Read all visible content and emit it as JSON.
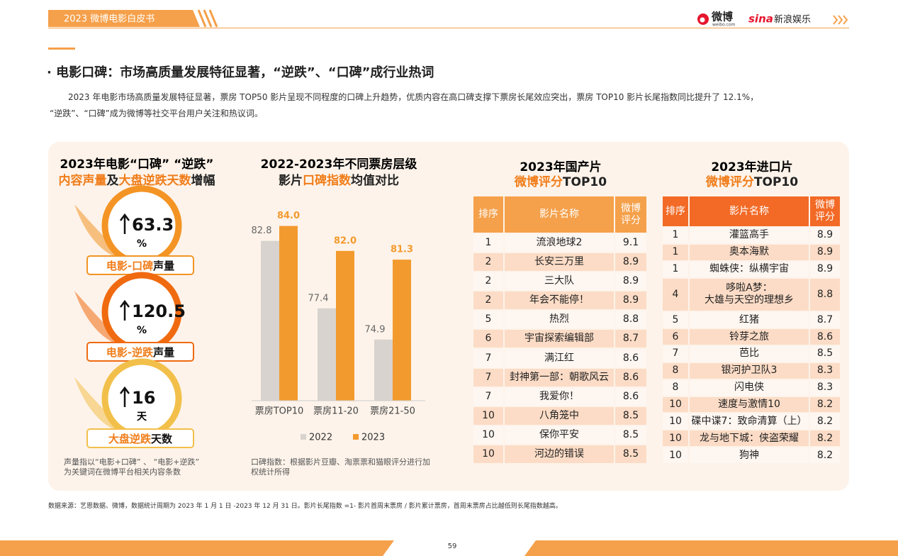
{
  "header": {
    "title": "2023 微博电影白皮书",
    "logo_weibo": "微博",
    "logo_weibo_url": "weibo.com",
    "logo_sina": "sina",
    "logo_sina_ent": "新浪娱乐"
  },
  "section": {
    "heading": "·  电影口碑：市场高质量发展特征显著，“逆跌”、“口碑”成行业热词",
    "paragraph_lines": [
      "2023 年电影市场高质量发展特征显著，票房 TOP50 影片呈现不同程度的口碑上升趋势，优质内容在高口碑支撑下票房长尾效应突出，票房 TOP10 影片长尾指数同比提升了 12.1%，",
      "“逆跌”、“口碑”成为微博等社交平台用户关注和热议词。"
    ]
  },
  "stats_panel": {
    "title_line1": "2023年电影“口碑” “逆跌”",
    "title_line2_parts": [
      "内容声量",
      "及",
      "大盘逆跌天数",
      "增幅"
    ],
    "items": [
      {
        "value": 63.3,
        "unit": "%",
        "label_parts": [
          "电影-口碑",
          "声量"
        ]
      },
      {
        "value": 120.5,
        "unit": "%",
        "label_parts": [
          "电影-逆跌",
          "声量"
        ]
      },
      {
        "value": 16,
        "unit": "天",
        "label_parts": [
          "大盘逆跌",
          "天数"
        ]
      }
    ],
    "note": "声量指以“电影+口碑” 、 “电影+逆跌”\n为关键词在微博平台相关内容条数"
  },
  "chart_data": {
    "type": "bar",
    "title_line1": "2022-2023年不同票房层级",
    "title_line2_parts": [
      "影片",
      "口碑指数",
      "均值对比"
    ],
    "categories": [
      "票房TOP10",
      "票房11-20",
      "票房21-50"
    ],
    "series": [
      {
        "name": "2022",
        "color": "#d8d3ce",
        "values": [
          82.8,
          77.4,
          74.9
        ]
      },
      {
        "name": "2023",
        "color": "#f39a2e",
        "values": [
          84.0,
          82.0,
          81.3
        ],
        "value_labels": [
          "84.0",
          "82.0",
          "81.3"
        ]
      }
    ],
    "ylim": [
      70,
      85
    ],
    "legend": "bottom",
    "note": "口碑指数：根据影片豆瓣、淘票票和猫眼评分进行加\n权统计所得"
  },
  "tables": {
    "domestic": {
      "title_line1": "2023年国产片",
      "title_line2_parts": [
        "微博评分",
        "TOP10"
      ],
      "columns": [
        "排序",
        "影片名称",
        "微博\n评分"
      ],
      "rows": [
        [
          1,
          "流浪地球2",
          9.1
        ],
        [
          2,
          "长安三万里",
          8.9
        ],
        [
          2,
          "三大队",
          8.9
        ],
        [
          2,
          "年会不能停！",
          8.9
        ],
        [
          5,
          "热烈",
          8.8
        ],
        [
          6,
          "宇宙探索编辑部",
          8.7
        ],
        [
          7,
          "满江红",
          8.6
        ],
        [
          7,
          "封神第一部：朝歌风云",
          8.6
        ],
        [
          7,
          "我爱你！",
          8.6
        ],
        [
          10,
          "八角笼中",
          8.5
        ],
        [
          10,
          "保你平安",
          8.5
        ],
        [
          10,
          "河边的错误",
          8.5
        ]
      ]
    },
    "imported": {
      "title_line1": "2023年进口片",
      "title_line2_parts": [
        "微博评分",
        "TOP10"
      ],
      "columns": [
        "排序",
        "影片名称",
        "微博\n评分"
      ],
      "rows": [
        [
          1,
          "灌篮高手",
          8.9
        ],
        [
          1,
          "奥本海默",
          8.9
        ],
        [
          1,
          "蜘蛛侠：纵横宇宙",
          8.9
        ],
        [
          4,
          "哆啦A梦：\n大雄与天空的理想乡",
          8.8
        ],
        [
          5,
          "红猪",
          8.7
        ],
        [
          6,
          "铃芽之旅",
          8.6
        ],
        [
          7,
          "芭比",
          8.5
        ],
        [
          8,
          "银河护卫队3",
          8.3
        ],
        [
          8,
          "闪电侠",
          8.3
        ],
        [
          10,
          "速度与激情10",
          8.2
        ],
        [
          10,
          "碟中谍7：致命清算（上）",
          8.2
        ],
        [
          10,
          "龙与地下城：侠盗荣耀",
          8.2
        ],
        [
          10,
          "狗神",
          8.2
        ]
      ]
    }
  },
  "footer": {
    "source": "数据来源：艺恩数据、微博，数据统计周期为 2023 年 1 月 1 日 -2023 年 12 月 31 日。影片长尾指数 =1- 影片首周末票房 / 影片累计票房，首周末票房占比越低则长尾指数越高。",
    "page_number": "59"
  }
}
